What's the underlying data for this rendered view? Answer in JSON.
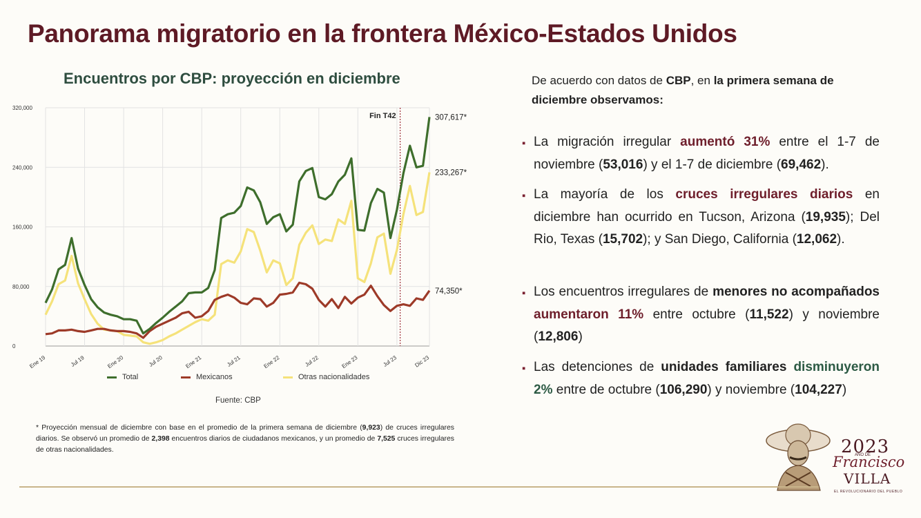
{
  "header": {
    "title": "Panorama migratorio en la frontera México-Estados Unidos"
  },
  "chart_title": "Encuentros por CBP: proyección en diciembre",
  "chart_data": {
    "type": "line",
    "x": [
      "2019-01",
      "2019-02",
      "2019-03",
      "2019-04",
      "2019-05",
      "2019-06",
      "2019-07",
      "2019-08",
      "2019-09",
      "2019-10",
      "2019-11",
      "2019-12",
      "2020-01",
      "2020-02",
      "2020-03",
      "2020-04",
      "2020-05",
      "2020-06",
      "2020-07",
      "2020-08",
      "2020-09",
      "2020-10",
      "2020-11",
      "2020-12",
      "2021-01",
      "2021-02",
      "2021-03",
      "2021-04",
      "2021-05",
      "2021-06",
      "2021-07",
      "2021-08",
      "2021-09",
      "2021-10",
      "2021-11",
      "2021-12",
      "2022-01",
      "2022-02",
      "2022-03",
      "2022-04",
      "2022-05",
      "2022-06",
      "2022-07",
      "2022-08",
      "2022-09",
      "2022-10",
      "2022-11",
      "2022-12",
      "2023-01",
      "2023-02",
      "2023-03",
      "2023-04",
      "2023-05",
      "2023-06",
      "2023-07",
      "2023-08",
      "2023-09",
      "2023-10",
      "2023-11",
      "2023-12"
    ],
    "x_tick_labels": [
      "Ene 19",
      "Jul 19",
      "Ene 20",
      "Jul 20",
      "Ene 21",
      "Jul 21",
      "Ene 22",
      "Jul 22",
      "Ene 23",
      "Jul 23",
      "Dic 23"
    ],
    "x_tick_index": [
      0,
      6,
      12,
      18,
      24,
      30,
      36,
      42,
      48,
      54,
      59
    ],
    "y_tick_labels": [
      "0",
      "80,000",
      "160,000",
      "240,000",
      "320,000"
    ],
    "ylim": [
      0,
      320000
    ],
    "series": [
      {
        "name": "Total",
        "color": "#3e6e2c",
        "values": [
          58000,
          76000,
          103000,
          109000,
          145000,
          104000,
          82000,
          63000,
          52000,
          45000,
          42000,
          40000,
          36000,
          36000,
          34000,
          17000,
          23000,
          31000,
          38000,
          46000,
          53000,
          60000,
          71000,
          72000,
          72000,
          78000,
          102000,
          172000,
          177000,
          179000,
          188000,
          213000,
          209000,
          193000,
          164000,
          173000,
          177000,
          154000,
          163000,
          221000,
          235000,
          239000,
          200000,
          197000,
          204000,
          221000,
          230000,
          252000,
          156000,
          155000,
          192000,
          211000,
          206000,
          145000,
          183000,
          232000,
          269000,
          240000,
          242000,
          307617
        ]
      },
      {
        "name": "Mexicanos",
        "color": "#9d3a28",
        "values": [
          16000,
          17000,
          21000,
          21000,
          22000,
          20000,
          19000,
          21000,
          23000,
          23000,
          21000,
          20000,
          20000,
          19000,
          17000,
          11000,
          20000,
          26000,
          30000,
          34000,
          38000,
          44000,
          46000,
          38000,
          40000,
          47000,
          62000,
          66000,
          69000,
          65000,
          58000,
          56000,
          64000,
          63000,
          53000,
          58000,
          69000,
          70000,
          72000,
          85000,
          83000,
          77000,
          62000,
          53000,
          63000,
          51000,
          66000,
          57000,
          65000,
          69000,
          81000,
          67000,
          55000,
          47000,
          54000,
          56000,
          54000,
          64000,
          62000,
          74350
        ]
      },
      {
        "name": "Otras nacionalidades",
        "color": "#f5e27a",
        "values": [
          42000,
          60000,
          83000,
          88000,
          121000,
          84000,
          63000,
          43000,
          30000,
          22000,
          21000,
          20000,
          15000,
          14000,
          13000,
          5000,
          3000,
          5000,
          8000,
          13000,
          17000,
          22000,
          27000,
          32000,
          36000,
          34000,
          42000,
          110000,
          115000,
          112000,
          127000,
          157000,
          153000,
          128000,
          99000,
          115000,
          111000,
          82000,
          91000,
          136000,
          152000,
          162000,
          137000,
          143000,
          141000,
          170000,
          164000,
          195000,
          91000,
          86000,
          111000,
          146000,
          151000,
          97000,
          129000,
          177000,
          215000,
          176000,
          180000,
          233267
        ]
      }
    ],
    "end_labels": [
      "307,617*",
      "233,267*",
      "74,350*"
    ],
    "annotation": {
      "label": "Fin T42",
      "x_index": 55
    }
  },
  "legend": [
    {
      "name": "Total",
      "color": "#3e6e2c"
    },
    {
      "name": "Mexicanos",
      "color": "#9d3a28"
    },
    {
      "name": "Otras nacionalidades",
      "color": "#f5e27a"
    }
  ],
  "source": "Fuente: CBP",
  "footnote": {
    "p1": "* Proyección mensual de diciembre con base en el promedio de la primera semana de diciembre (",
    "v1": "9,923",
    "p2": ") de cruces irregulares diarios. Se observó un promedio de ",
    "v2": "2,398",
    "p3": " encuentros diarios de ciudadanos mexicanos, y un promedio de ",
    "v3": "7,525",
    "p4": " cruces irregulares de otras nacionalidades."
  },
  "intro": {
    "t1": "De acuerdo con datos de ",
    "b1": "CBP",
    "t2": ", en ",
    "b2": "la primera semana de diciembre observamos:"
  },
  "bullets": {
    "b1": {
      "t1": "La migración irregular ",
      "r1": "aumentó 31%",
      "t2": " entre el 1-7 de noviembre (",
      "k1": "53,016",
      "t3": ") y el 1-7 de diciembre (",
      "k2": "69,462",
      "t4": ")."
    },
    "b2": {
      "t1": "La mayoría de los ",
      "r1": "cruces irregulares diarios",
      "t2": " en diciembre han ocurrido en Tucson, Arizona (",
      "k1": "19,935",
      "t3": "); Del Rio, Texas (",
      "k2": "15,702",
      "t4": "); y San Diego, California (",
      "k3": "12,062",
      "t5": ")."
    },
    "b3": {
      "t1": "Los encuentros irregulares de ",
      "k1": "menores no acompañados",
      "r1": "aumentaron 11%",
      "t2": " entre octubre (",
      "k2": "11,522",
      "t3": ") y noviembre (",
      "k3": "12,806",
      "t4": ")"
    },
    "b4": {
      "t1": "Las detenciones de ",
      "k1": "unidades familiares",
      "g1": "disminuyeron 2%",
      "t2": " entre de octubre (",
      "k2": "106,290",
      "t3": ") y noviembre (",
      "k3": "104,227",
      "t4": ")"
    }
  },
  "logo": {
    "year": "2023",
    "sub": "AÑO DE",
    "name1": "Francisco",
    "name2": "VILLA",
    "motto": "EL REVOLUCIONARIO DEL PUEBLO"
  }
}
